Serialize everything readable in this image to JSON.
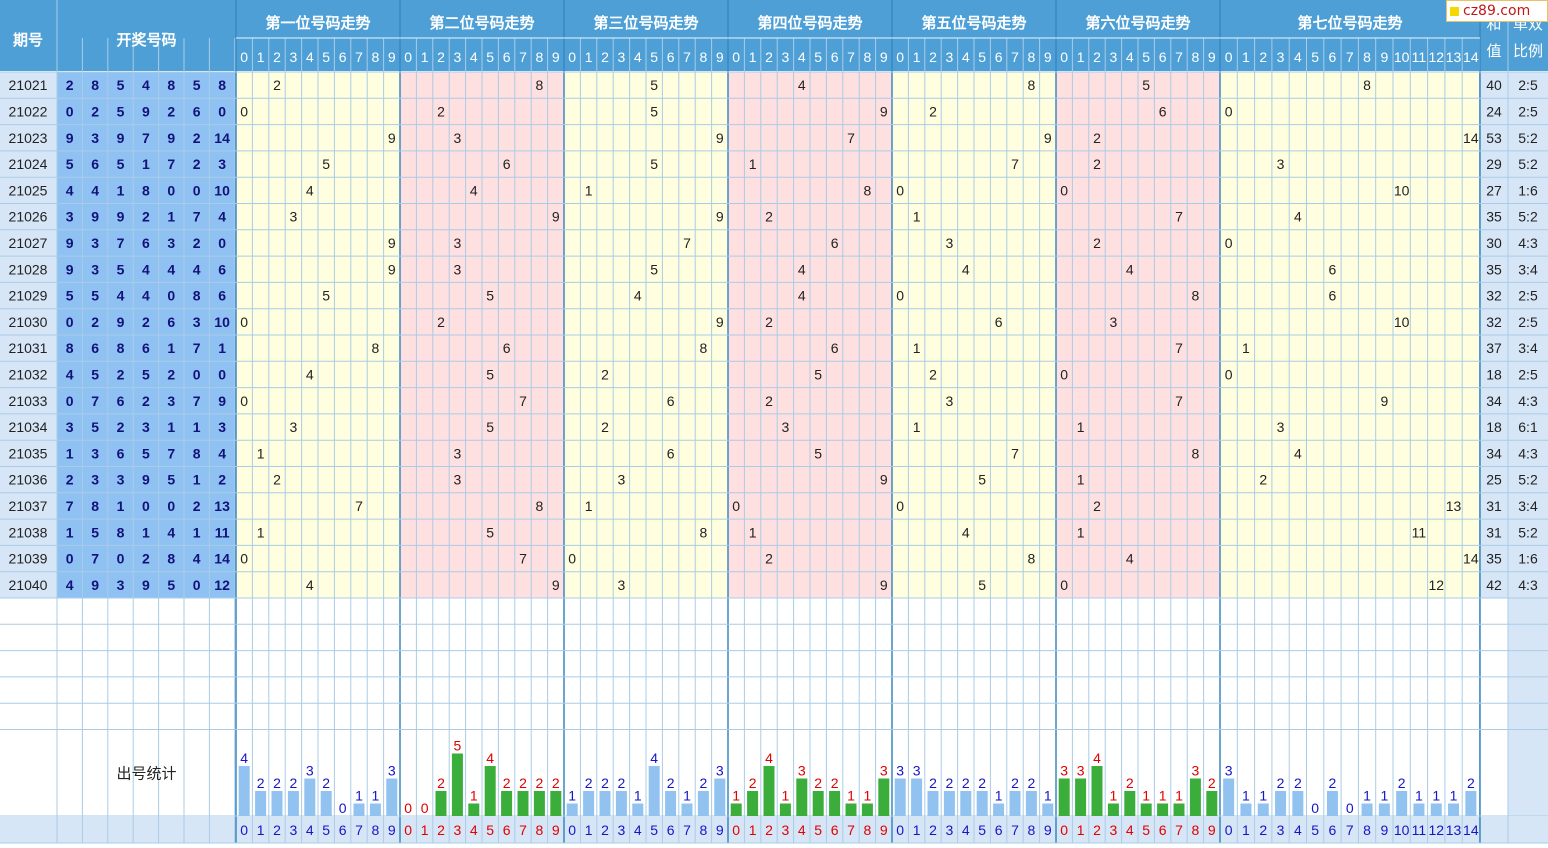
{
  "header": {
    "period": "期号",
    "numbers": "开奖号码",
    "positions": [
      "第一位号码走势",
      "第二位号码走势",
      "第三位号码走势",
      "第四位号码走势",
      "第五位号码走势",
      "第六位号码走势",
      "第七位号码走势"
    ],
    "sum": "和值",
    "ratio": "单双比例"
  },
  "logo": "cz89.com",
  "stats_label": "出号统计",
  "colors": {
    "header_bg": "#4d9fd6",
    "issue_bg": "#d7e6f7",
    "number_bg": "#8fc2f2",
    "yellow": "#ffffe0",
    "pink": "#ffe0e0",
    "grid": "#a9cce6",
    "bar_blue": "#91c2f0",
    "bar_green": "#3aad3a",
    "count_blue": "#1515c8",
    "count_red": "#e00000"
  },
  "chart_data": {
    "type": "table",
    "rows": [
      {
        "issue": "21021",
        "numbers": [
          2,
          8,
          5,
          4,
          8,
          5,
          8
        ],
        "sum": "40",
        "ratio": "2:5"
      },
      {
        "issue": "21022",
        "numbers": [
          0,
          2,
          5,
          9,
          2,
          6,
          0
        ],
        "sum": "24",
        "ratio": "2:5"
      },
      {
        "issue": "21023",
        "numbers": [
          9,
          3,
          9,
          7,
          9,
          2,
          14
        ],
        "sum": "53",
        "ratio": "5:2"
      },
      {
        "issue": "21024",
        "numbers": [
          5,
          6,
          5,
          1,
          7,
          2,
          3
        ],
        "sum": "29",
        "ratio": "5:2"
      },
      {
        "issue": "21025",
        "numbers": [
          4,
          4,
          1,
          8,
          0,
          0,
          10
        ],
        "sum": "27",
        "ratio": "1:6"
      },
      {
        "issue": "21026",
        "numbers": [
          3,
          9,
          9,
          2,
          1,
          7,
          4
        ],
        "sum": "35",
        "ratio": "5:2"
      },
      {
        "issue": "21027",
        "numbers": [
          9,
          3,
          7,
          6,
          3,
          2,
          0
        ],
        "sum": "30",
        "ratio": "4:3"
      },
      {
        "issue": "21028",
        "numbers": [
          9,
          3,
          5,
          4,
          4,
          4,
          6
        ],
        "sum": "35",
        "ratio": "3:4"
      },
      {
        "issue": "21029",
        "numbers": [
          5,
          5,
          4,
          4,
          0,
          8,
          6
        ],
        "sum": "32",
        "ratio": "2:5"
      },
      {
        "issue": "21030",
        "numbers": [
          0,
          2,
          9,
          2,
          6,
          3,
          10
        ],
        "sum": "32",
        "ratio": "2:5"
      },
      {
        "issue": "21031",
        "numbers": [
          8,
          6,
          8,
          6,
          1,
          7,
          1
        ],
        "sum": "37",
        "ratio": "3:4"
      },
      {
        "issue": "21032",
        "numbers": [
          4,
          5,
          2,
          5,
          2,
          0,
          0
        ],
        "sum": "18",
        "ratio": "2:5"
      },
      {
        "issue": "21033",
        "numbers": [
          0,
          7,
          6,
          2,
          3,
          7,
          9
        ],
        "sum": "34",
        "ratio": "4:3"
      },
      {
        "issue": "21034",
        "numbers": [
          3,
          5,
          2,
          3,
          1,
          1,
          3
        ],
        "sum": "18",
        "ratio": "6:1"
      },
      {
        "issue": "21035",
        "numbers": [
          1,
          3,
          6,
          5,
          7,
          8,
          4
        ],
        "sum": "34",
        "ratio": "4:3"
      },
      {
        "issue": "21036",
        "numbers": [
          2,
          3,
          3,
          9,
          5,
          1,
          2
        ],
        "sum": "25",
        "ratio": "5:2"
      },
      {
        "issue": "21037",
        "numbers": [
          7,
          8,
          1,
          0,
          0,
          2,
          13
        ],
        "sum": "31",
        "ratio": "3:4"
      },
      {
        "issue": "21038",
        "numbers": [
          1,
          5,
          8,
          1,
          4,
          1,
          11
        ],
        "sum": "31",
        "ratio": "5:2"
      },
      {
        "issue": "21039",
        "numbers": [
          0,
          7,
          0,
          2,
          8,
          4,
          14
        ],
        "sum": "35",
        "ratio": "1:6"
      },
      {
        "issue": "21040",
        "numbers": [
          4,
          9,
          3,
          9,
          5,
          0,
          12
        ],
        "sum": "42",
        "ratio": "4:3"
      }
    ],
    "stats": [
      [
        4,
        2,
        2,
        2,
        3,
        2,
        0,
        1,
        1,
        3
      ],
      [
        0,
        0,
        2,
        5,
        1,
        4,
        2,
        2,
        2,
        2
      ],
      [
        1,
        2,
        2,
        2,
        1,
        4,
        2,
        1,
        2,
        3
      ],
      [
        1,
        2,
        4,
        1,
        3,
        2,
        2,
        1,
        1,
        3
      ],
      [
        3,
        3,
        2,
        2,
        2,
        2,
        1,
        2,
        2,
        1
      ],
      [
        3,
        3,
        4,
        1,
        2,
        1,
        1,
        1,
        3,
        2
      ],
      [
        3,
        1,
        1,
        2,
        2,
        0,
        2,
        0,
        1,
        1,
        2,
        1,
        1,
        1,
        2
      ]
    ],
    "digit_labels": [
      "0",
      "1",
      "2",
      "3",
      "4",
      "5",
      "6",
      "7",
      "8",
      "9"
    ],
    "seventh_labels": [
      "0",
      "1",
      "2",
      "3",
      "4",
      "5",
      "6",
      "7",
      "8",
      "9",
      "10",
      "11",
      "12",
      "13",
      "14"
    ]
  }
}
